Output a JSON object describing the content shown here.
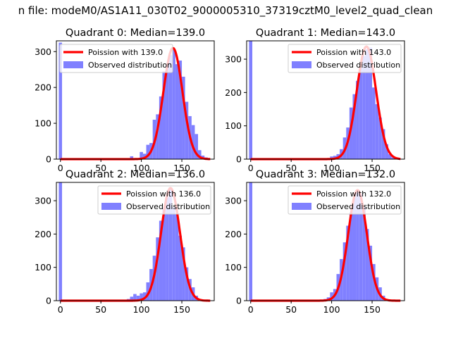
{
  "figure": {
    "suptitle": "n file: modeM0/AS1A11_030T02_9000005310_37319cztM0_level2_quad_clean"
  },
  "colors": {
    "poisson_line": "#ff0000",
    "histogram": "#8080ff"
  },
  "chart_data": [
    {
      "type": "bar",
      "title": "Quadrant 0: Median=139.0",
      "xticks": [
        0,
        50,
        100,
        150
      ],
      "yticks": [
        0,
        100,
        200,
        300
      ],
      "xlim": [
        -5,
        190
      ],
      "ylim": [
        0,
        330
      ],
      "legend_position": "upper-left",
      "series": [
        {
          "name": "Poission with 139.0",
          "kind": "line",
          "lambda": 139.0,
          "peak": 310
        },
        {
          "name": "Observed distribution",
          "kind": "histogram",
          "bin_width": 4,
          "bins": [
            [
              -2,
              325
            ],
            [
              86,
              8
            ],
            [
              94,
              3
            ],
            [
              98,
              20
            ],
            [
              102,
              15
            ],
            [
              106,
              40
            ],
            [
              110,
              45
            ],
            [
              114,
              110
            ],
            [
              118,
              125
            ],
            [
              122,
              175
            ],
            [
              126,
              245
            ],
            [
              130,
              265
            ],
            [
              134,
              290
            ],
            [
              138,
              305
            ],
            [
              142,
              265
            ],
            [
              146,
              275
            ],
            [
              150,
              230
            ],
            [
              154,
              160
            ],
            [
              158,
              120
            ],
            [
              162,
              95
            ],
            [
              166,
              70
            ],
            [
              170,
              25
            ],
            [
              174,
              10
            ],
            [
              178,
              5
            ]
          ]
        }
      ]
    },
    {
      "type": "bar",
      "title": "Quadrant 1: Median=143.0",
      "xticks": [
        0,
        50,
        100,
        150
      ],
      "yticks": [
        0,
        100,
        200,
        300
      ],
      "xlim": [
        -5,
        190
      ],
      "ylim": [
        0,
        355
      ],
      "legend_position": "upper-right",
      "series": [
        {
          "name": "Poission with 143.0",
          "kind": "line",
          "lambda": 143.0,
          "peak": 338
        },
        {
          "name": "Observed distribution",
          "kind": "histogram",
          "bin_width": 4,
          "bins": [
            [
              -2,
              355
            ],
            [
              98,
              8
            ],
            [
              102,
              10
            ],
            [
              106,
              15
            ],
            [
              110,
              30
            ],
            [
              114,
              65
            ],
            [
              118,
              95
            ],
            [
              122,
              155
            ],
            [
              126,
              195
            ],
            [
              130,
              235
            ],
            [
              134,
              275
            ],
            [
              138,
              310
            ],
            [
              142,
              330
            ],
            [
              146,
              335
            ],
            [
              150,
              215
            ],
            [
              154,
              165
            ],
            [
              158,
              125
            ],
            [
              162,
              90
            ],
            [
              166,
              45
            ],
            [
              170,
              15
            ],
            [
              174,
              5
            ]
          ]
        }
      ]
    },
    {
      "type": "bar",
      "title": "Quadrant 2: Median=136.0",
      "xticks": [
        0,
        50,
        100,
        150
      ],
      "yticks": [
        0,
        100,
        200,
        300
      ],
      "xlim": [
        -5,
        190
      ],
      "ylim": [
        0,
        355
      ],
      "legend_position": "upper-right",
      "series": [
        {
          "name": "Poission with 136.0",
          "kind": "line",
          "lambda": 136.0,
          "peak": 338
        },
        {
          "name": "Observed distribution",
          "kind": "histogram",
          "bin_width": 4,
          "bins": [
            [
              -2,
              355
            ],
            [
              82,
              5
            ],
            [
              86,
              12
            ],
            [
              90,
              20
            ],
            [
              94,
              15
            ],
            [
              98,
              22
            ],
            [
              102,
              25
            ],
            [
              106,
              55
            ],
            [
              110,
              95
            ],
            [
              114,
              135
            ],
            [
              118,
              190
            ],
            [
              122,
              240
            ],
            [
              126,
              280
            ],
            [
              130,
              310
            ],
            [
              134,
              340
            ],
            [
              138,
              280
            ],
            [
              142,
              260
            ],
            [
              146,
              195
            ],
            [
              150,
              160
            ],
            [
              154,
              100
            ],
            [
              158,
              65
            ],
            [
              162,
              40
            ],
            [
              166,
              15
            ],
            [
              170,
              5
            ]
          ]
        }
      ]
    },
    {
      "type": "bar",
      "title": "Quadrant 3: Median=132.0",
      "xticks": [
        0,
        50,
        100,
        150
      ],
      "yticks": [
        0,
        100,
        200,
        300
      ],
      "xlim": [
        -5,
        190
      ],
      "ylim": [
        0,
        355
      ],
      "legend_position": "upper-right",
      "series": [
        {
          "name": "Poission with 132.0",
          "kind": "line",
          "lambda": 132.0,
          "peak": 332
        },
        {
          "name": "Observed distribution",
          "kind": "histogram",
          "bin_width": 4,
          "bins": [
            [
              -2,
              355
            ],
            [
              90,
              5
            ],
            [
              94,
              10
            ],
            [
              98,
              25
            ],
            [
              102,
              35
            ],
            [
              106,
              80
            ],
            [
              110,
              125
            ],
            [
              114,
              175
            ],
            [
              118,
              225
            ],
            [
              122,
              265
            ],
            [
              126,
              310
            ],
            [
              130,
              330
            ],
            [
              134,
              320
            ],
            [
              138,
              280
            ],
            [
              142,
              215
            ],
            [
              146,
              165
            ],
            [
              150,
              110
            ],
            [
              154,
              70
            ],
            [
              158,
              40
            ],
            [
              162,
              15
            ],
            [
              166,
              5
            ]
          ]
        }
      ]
    }
  ]
}
